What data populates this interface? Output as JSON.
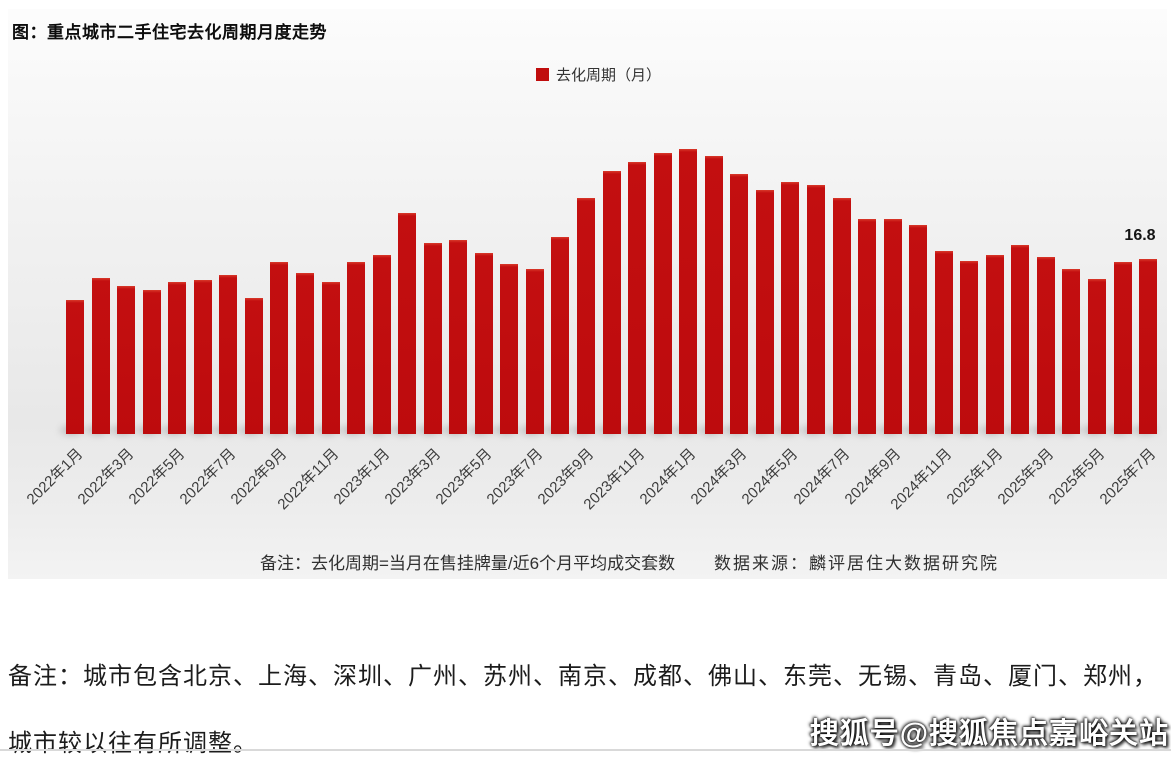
{
  "chart_data": {
    "type": "bar",
    "title": "图：重点城市二手住宅去化周期月度走势",
    "legend": [
      "去化周期（月）"
    ],
    "legend_position": "top-center",
    "bar_color": "#c00d0d",
    "grid": false,
    "ylabel": "",
    "xlabel": "",
    "ylim": [
      0,
      28
    ],
    "categories": [
      "2022年1月",
      "2022年2月",
      "2022年3月",
      "2022年4月",
      "2022年5月",
      "2022年6月",
      "2022年7月",
      "2022年8月",
      "2022年9月",
      "2022年10月",
      "2022年11月",
      "2022年12月",
      "2023年1月",
      "2023年2月",
      "2023年3月",
      "2023年4月",
      "2023年5月",
      "2023年6月",
      "2023年7月",
      "2023年8月",
      "2023年9月",
      "2023年10月",
      "2023年11月",
      "2023年12月",
      "2024年1月",
      "2024年2月",
      "2024年3月",
      "2024年4月",
      "2024年5月",
      "2024年6月",
      "2024年7月",
      "2024年8月",
      "2024年9月",
      "2024年10月",
      "2024年11月",
      "2024年12月",
      "2025年1月",
      "2025年2月",
      "2025年3月",
      "2025年4月",
      "2025年5月",
      "2025年6月",
      "2025年7月"
    ],
    "values": [
      12.9,
      15.0,
      14.2,
      13.8,
      14.6,
      14.8,
      15.3,
      13.1,
      16.5,
      15.5,
      14.6,
      16.5,
      17.2,
      21.2,
      18.3,
      18.6,
      17.4,
      16.3,
      15.8,
      18.9,
      22.7,
      25.2,
      26.1,
      27.0,
      27.4,
      26.7,
      25.0,
      23.4,
      24.2,
      23.9,
      22.7,
      20.6,
      20.6,
      20.1,
      17.6,
      16.6,
      17.2,
      18.1,
      17.0,
      15.8,
      14.9,
      16.5,
      16.8
    ],
    "x_tick_labels": [
      "2022年1月",
      "2022年3月",
      "2022年5月",
      "2022年7月",
      "2022年9月",
      "2022年11月",
      "2023年1月",
      "2023年3月",
      "2023年5月",
      "2023年7月",
      "2023年9月",
      "2023年11月",
      "2024年1月",
      "2024年3月",
      "2024年5月",
      "2024年7月",
      "2024年9月",
      "2024年11月",
      "2025年1月",
      "2025年3月",
      "2025年5月",
      "2025年7月"
    ],
    "last_value_label": "16.8",
    "last_value_month": "2025年7月"
  },
  "footnotes": {
    "definition": "备注：去化周期=当月在售挂牌量/近6个月平均成交套数",
    "source": "数据来源：麟评居住大数据研究院"
  },
  "bottom_note": {
    "line1": "备注：城市包含北京、上海、深圳、广州、苏州、南京、成都、佛山、东莞、无锡、青岛、厦门、郑州，",
    "line2": "城市较以往有所调整。"
  },
  "watermark": "搜狐号@搜狐焦点嘉峪关站"
}
